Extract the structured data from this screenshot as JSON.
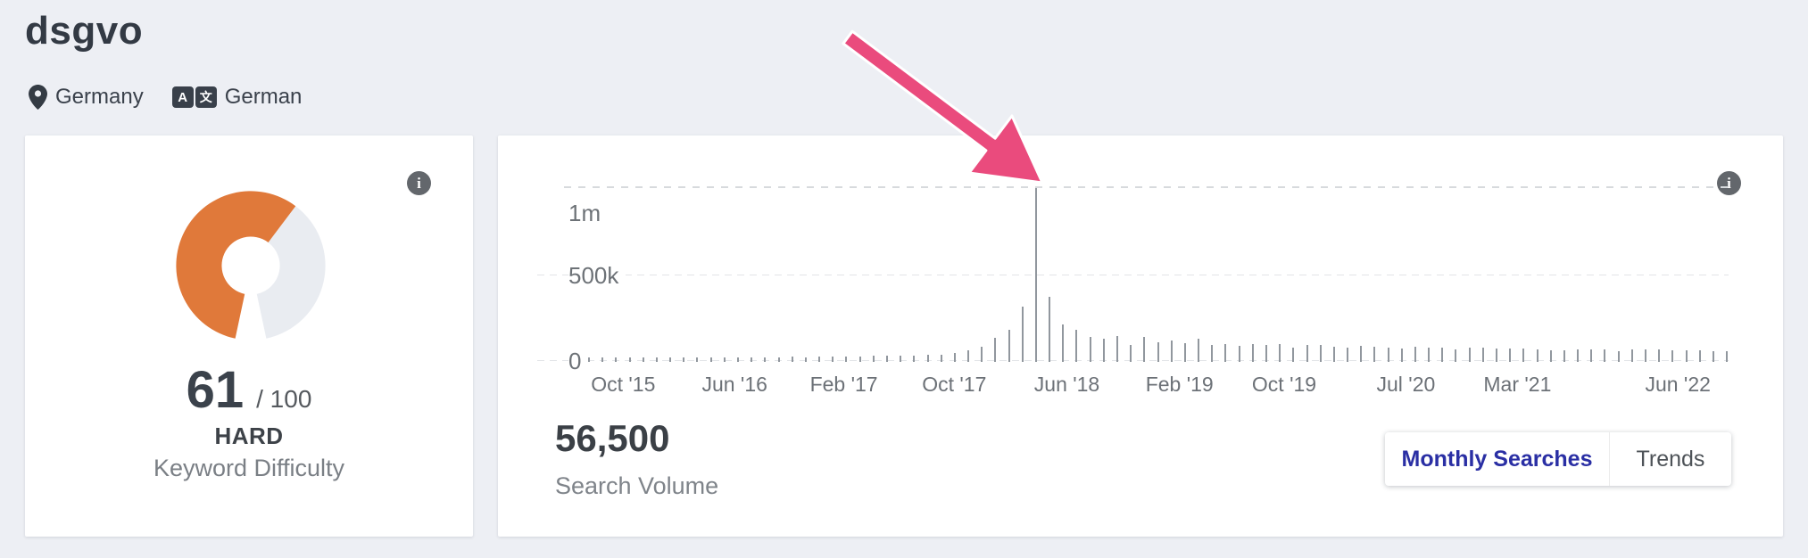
{
  "page": {
    "background": "#edeff4"
  },
  "header": {
    "keyword": "dsgvo",
    "location": "Germany",
    "language": "German"
  },
  "icons": {
    "info_glyph": "i",
    "language_glyph_a": "A",
    "language_glyph_char": "文"
  },
  "difficulty_card": {
    "score": "61",
    "score_max": "/ 100",
    "level": "HARD",
    "label": "Keyword Difficulty",
    "gauge": {
      "value": 61,
      "max": 100,
      "fill_color": "#e0793a",
      "track_color": "#e9ecf1"
    }
  },
  "volume_card": {
    "search_volume": "56,500",
    "search_volume_label": "Search Volume",
    "tabs": [
      {
        "label": "Monthly Searches",
        "active": true,
        "active_color": "#2a2fa4"
      },
      {
        "label": "Trends",
        "active": false
      }
    ],
    "annotation_arrow_color": "#ea4b7d"
  },
  "chart_data": {
    "type": "bar",
    "x_start": "Aug 2015",
    "x_end": "Aug 2022",
    "ylim": [
      0,
      1080000
    ],
    "grid": "dashed horizontal lines at 0, 500k and dotted line at 1m",
    "bar_color": "#91979e",
    "y_ticks": [
      {
        "label": "1m",
        "value": 1000000
      },
      {
        "label": "500k",
        "value": 500000
      },
      {
        "label": "0",
        "value": 0
      }
    ],
    "x_ticks": [
      {
        "label": "Oct '15",
        "x_percent": 3.0
      },
      {
        "label": "Jun '16",
        "x_percent": 12.8
      },
      {
        "label": "Feb '17",
        "x_percent": 22.4
      },
      {
        "label": "Oct '17",
        "x_percent": 32.1
      },
      {
        "label": "Jun '18",
        "x_percent": 42.0
      },
      {
        "label": "Feb '19",
        "x_percent": 51.9
      },
      {
        "label": "Oct '19",
        "x_percent": 61.1
      },
      {
        "label": "Jul '20",
        "x_percent": 71.8
      },
      {
        "label": "Mar '21",
        "x_percent": 81.6
      },
      {
        "label": "Jun '22",
        "x_percent": 95.7
      }
    ],
    "peak": {
      "month": "May 2018",
      "value": 1000000,
      "annotation": "pink arrow pointing at spike"
    },
    "values": [
      12000,
      13000,
      13000,
      14000,
      14000,
      15000,
      15000,
      16000,
      16000,
      16000,
      17000,
      16000,
      17000,
      18000,
      18000,
      19000,
      18000,
      20000,
      21000,
      22000,
      22000,
      24000,
      25000,
      26000,
      28000,
      30000,
      33000,
      43000,
      55000,
      80000,
      130000,
      176000,
      310000,
      1000000,
      368000,
      205000,
      176000,
      134000,
      124000,
      140000,
      88000,
      134000,
      104000,
      114000,
      98000,
      124000,
      90000,
      93000,
      85000,
      96000,
      90000,
      92000,
      74000,
      90000,
      86000,
      80000,
      75000,
      82000,
      76000,
      72000,
      68000,
      78000,
      74000,
      72000,
      60000,
      74000,
      72000,
      70000,
      66000,
      70000,
      62000,
      58000,
      56000,
      64000,
      62000,
      62000,
      50000,
      62000,
      60000,
      60000,
      56000,
      58000,
      56000,
      52000,
      50000
    ]
  }
}
